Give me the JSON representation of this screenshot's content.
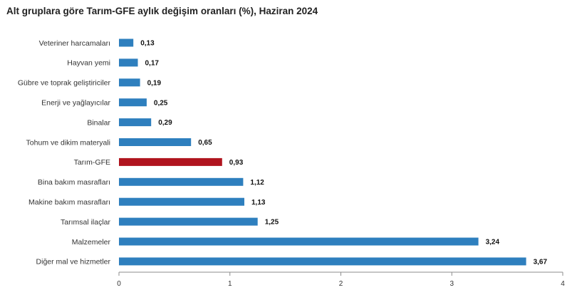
{
  "chart_data": {
    "type": "bar",
    "orientation": "horizontal",
    "title": "Alt gruplara göre Tarım-GFE aylık değişim oranları (%), Haziran 2024",
    "xlabel": "",
    "ylabel": "",
    "xlim": [
      0,
      4
    ],
    "xticks": [
      "0",
      "1",
      "2",
      "3",
      "4"
    ],
    "grid": false,
    "categories": [
      "Veteriner harcamaları",
      "Hayvan yemi",
      "Gübre ve toprak geliştiriciler",
      "Enerji  ve yağlayıcılar",
      "Binalar",
      "Tohum ve dikim materyali",
      "Tarım-GFE",
      "Bina bakım masrafları",
      "Makine bakım masrafları",
      "Tarımsal ilaçlar",
      "Malzemeler",
      "Diğer mal ve hizmetler"
    ],
    "values": [
      0.13,
      0.17,
      0.19,
      0.25,
      0.29,
      0.65,
      0.93,
      1.12,
      1.13,
      1.25,
      3.24,
      3.67
    ],
    "value_labels": [
      "0,13",
      "0,17",
      "0,19",
      "0,25",
      "0,29",
      "0,65",
      "0,93",
      "1,12",
      "1,13",
      "1,25",
      "3,24",
      "3,67"
    ],
    "highlight_category": "Tarım-GFE",
    "colors": {
      "bar": "#2e7fbe",
      "highlight": "#b0141e",
      "axis": "#8c8c8c"
    }
  }
}
